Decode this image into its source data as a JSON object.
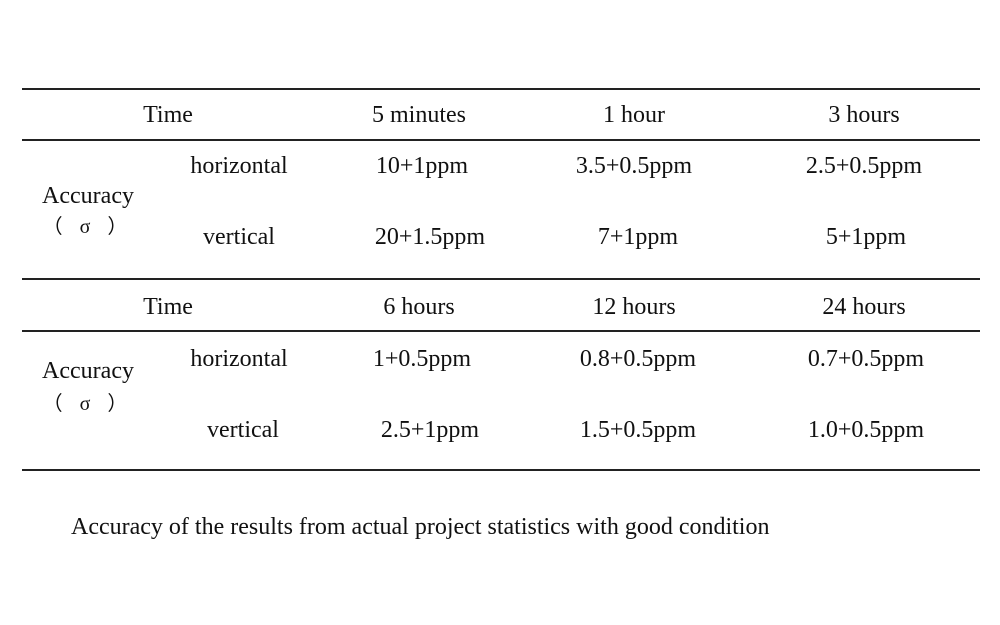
{
  "tables": [
    {
      "time_label": "Time",
      "periods": [
        "5 minutes",
        "1 hour",
        "3 hours"
      ],
      "group_label": "Accuracy",
      "group_symbol": "（ σ ）",
      "rows": [
        {
          "label": "horizontal",
          "values": [
            "10+1ppm",
            "3.5+0.5ppm",
            "2.5+0.5ppm"
          ]
        },
        {
          "label": "vertical",
          "values": [
            "20+1.5ppm",
            "7+1ppm",
            "5+1ppm"
          ]
        }
      ]
    },
    {
      "time_label": "Time",
      "periods": [
        "6 hours",
        "12 hours",
        "24 hours"
      ],
      "group_label": "Accuracy",
      "group_symbol": "（ σ ）",
      "rows": [
        {
          "label": "horizontal",
          "values": [
            "1+0.5ppm",
            "0.8+0.5ppm",
            "0.7+0.5ppm"
          ]
        },
        {
          "label": "vertical",
          "values": [
            "2.5+1ppm",
            "1.5+0.5ppm",
            "1.0+0.5ppm"
          ]
        }
      ]
    }
  ],
  "caption": "Accuracy of the results from actual project statistics with good condition"
}
